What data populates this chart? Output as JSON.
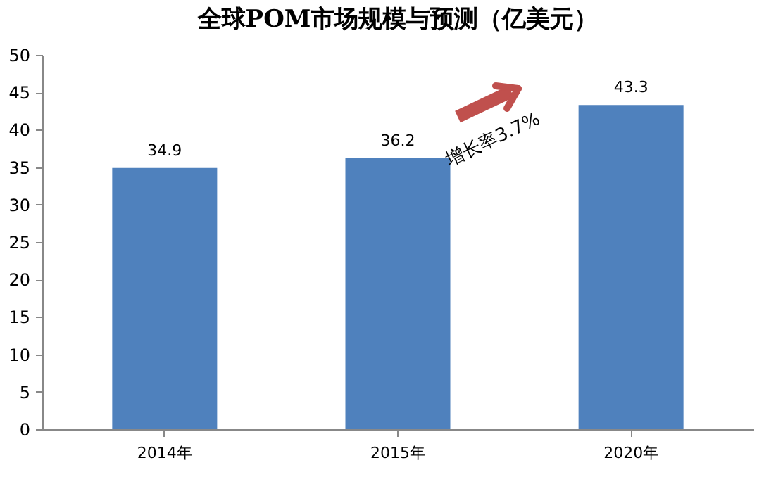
{
  "chart_data": {
    "type": "bar",
    "title": "全球POM市场规模与预测（亿美元）",
    "categories": [
      "2014年",
      "2015年",
      "2020年"
    ],
    "values": [
      34.9,
      36.2,
      43.3
    ],
    "color": "#4f81bd",
    "ylim": [
      0,
      50
    ],
    "yticks": [
      0,
      5,
      10,
      15,
      20,
      25,
      30,
      35,
      40,
      45,
      50
    ],
    "grid": false,
    "data_labels": true,
    "annotations": [
      "增长率3.7%"
    ]
  }
}
